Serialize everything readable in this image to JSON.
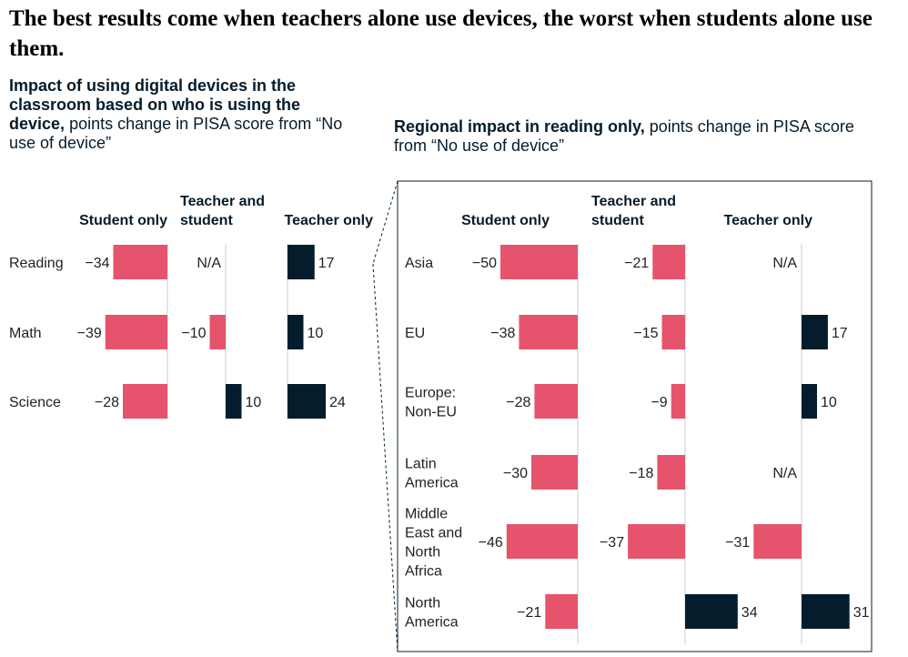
{
  "headline": "The best results come when teachers alone use devices, the worst when students alone use them.",
  "left_subtitle": {
    "bold": "Impact of using digital devices in the classroom based on who is using the device,",
    "normal": "points change in PISA score from “No use of device”"
  },
  "right_subtitle": {
    "bold": "Regional impact in reading only,",
    "normal": "points change in PISA score from “No use of device”"
  },
  "colors": {
    "negative": "#e5546c",
    "positive": "#051c2c",
    "axis": "#cccccc",
    "connector": "#051c2c"
  },
  "chart_data": [
    {
      "type": "bar",
      "orientation": "horizontal",
      "title": "Impact of using digital devices in the classroom based on who is using the device, points change in PISA score from “No use of device”",
      "categories": [
        "Reading",
        "Math",
        "Science"
      ],
      "series": [
        {
          "name": "Student only",
          "values": [
            -34,
            -39,
            -28
          ],
          "labels": [
            "−34",
            "−39",
            "−28"
          ]
        },
        {
          "name": "Teacher and student",
          "values": [
            null,
            -10,
            10
          ],
          "labels": [
            "N/A",
            "−10",
            "10"
          ]
        },
        {
          "name": "Teacher only",
          "values": [
            17,
            10,
            24
          ],
          "labels": [
            "17",
            "10",
            "24"
          ]
        }
      ]
    },
    {
      "type": "bar",
      "orientation": "horizontal",
      "title": "Regional impact in reading only, points change in PISA score from “No use of device”",
      "categories": [
        "Asia",
        "EU",
        "Europe: Non-EU",
        "Latin America",
        "Middle East and North Africa",
        "North America"
      ],
      "series": [
        {
          "name": "Student only",
          "values": [
            -50,
            -38,
            -28,
            -30,
            -46,
            -21
          ],
          "labels": [
            "−50",
            "−38",
            "−28",
            "−30",
            "−46",
            "−21"
          ]
        },
        {
          "name": "Teacher and student",
          "values": [
            -21,
            -15,
            -9,
            -18,
            -37,
            34
          ],
          "labels": [
            "−21",
            "−15",
            "−9",
            "−18",
            "−37",
            "34"
          ]
        },
        {
          "name": "Teacher only",
          "values": [
            null,
            17,
            10,
            null,
            -31,
            31
          ],
          "labels": [
            "N/A",
            "17",
            "10",
            "N/A",
            "−31",
            "31"
          ]
        }
      ]
    }
  ]
}
